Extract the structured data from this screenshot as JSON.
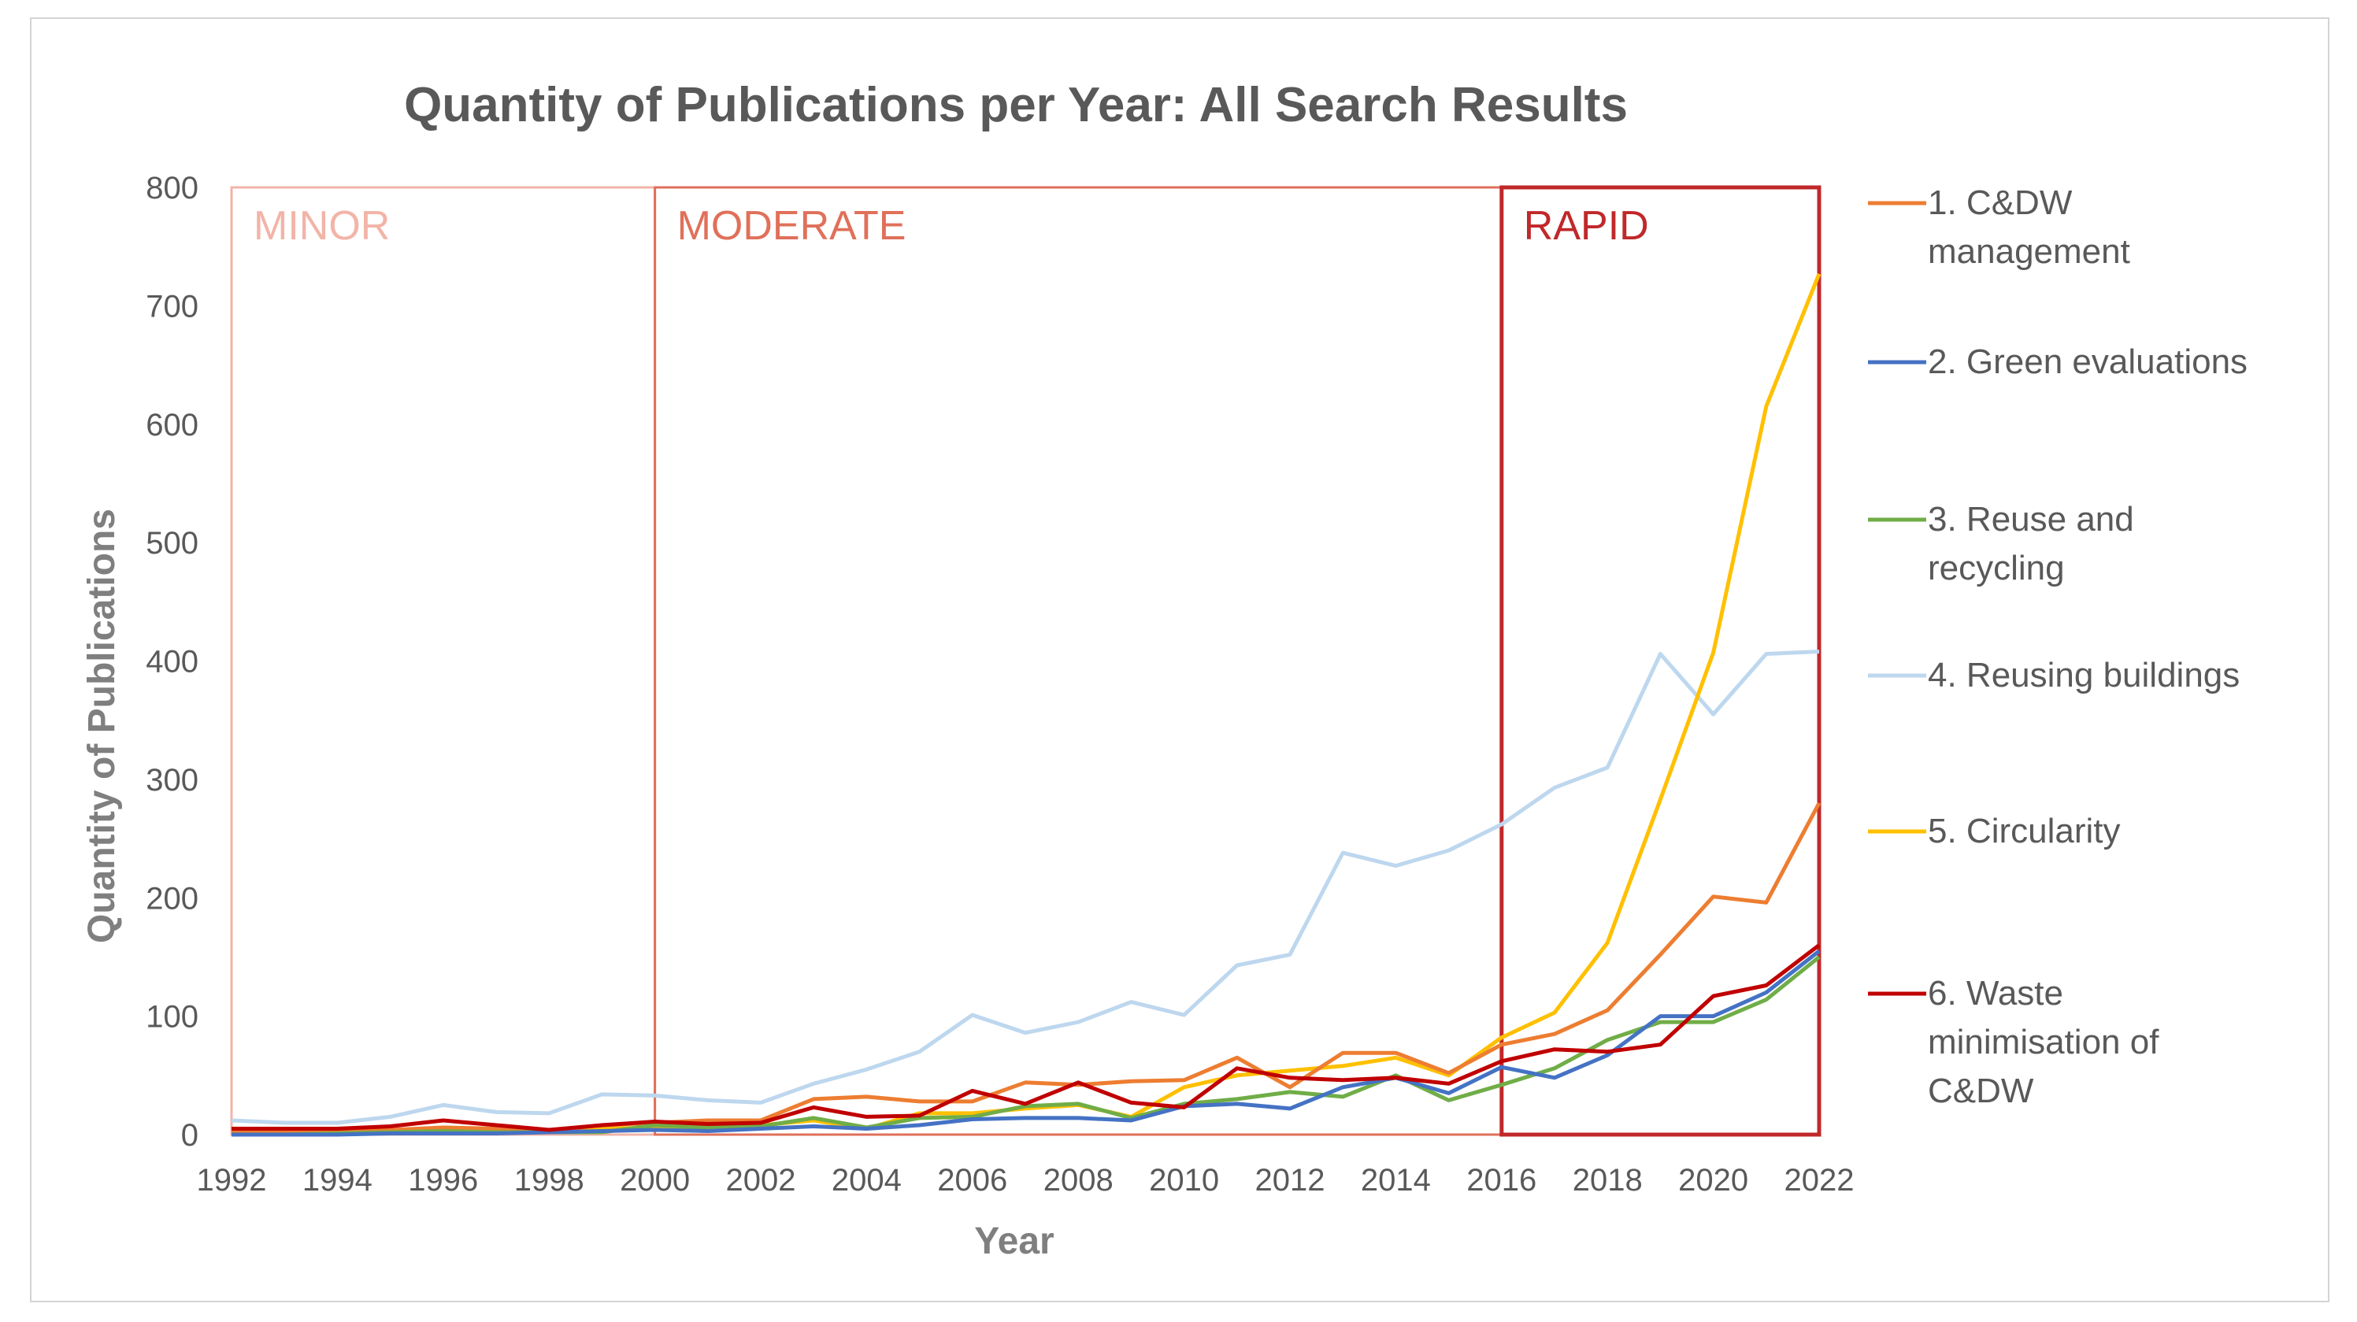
{
  "chart_data": {
    "type": "line",
    "title": "Quantity of Publications per Year: All Search Results",
    "xlabel": "Year",
    "ylabel": "Quantity of Publications",
    "xlim": [
      1992,
      2022
    ],
    "ylim": [
      0,
      800
    ],
    "x_ticks": [
      "1992",
      "1994",
      "1996",
      "1998",
      "2000",
      "2002",
      "2004",
      "2006",
      "2008",
      "2010",
      "2012",
      "2014",
      "2016",
      "2018",
      "2020",
      "2022"
    ],
    "y_ticks": [
      "0",
      "100",
      "200",
      "300",
      "400",
      "500",
      "600",
      "700",
      "800"
    ],
    "grid": false,
    "legend_position": "right",
    "x": [
      1992,
      1993,
      1994,
      1995,
      1996,
      1997,
      1998,
      1999,
      2000,
      2001,
      2002,
      2003,
      2004,
      2005,
      2006,
      2007,
      2008,
      2009,
      2010,
      2011,
      2012,
      2013,
      2014,
      2015,
      2016,
      2017,
      2018,
      2019,
      2020,
      2021,
      2022
    ],
    "phases": [
      {
        "label": "MINOR",
        "start": 1992,
        "end": 2000,
        "color": "#f2b4a8"
      },
      {
        "label": "MODERATE",
        "start": 2000,
        "end": 2016,
        "color": "#e0705a"
      },
      {
        "label": "RAPID",
        "start": 2016,
        "end": 2022,
        "color": "#c0282a"
      }
    ],
    "series": [
      {
        "name": "4. Reusing buildings",
        "legend_lines": [
          "4. Reusing buildings"
        ],
        "color": "#bdd7ee",
        "values": [
          12,
          10,
          10,
          15,
          25,
          19,
          18,
          34,
          33,
          29,
          27,
          43,
          55,
          70,
          101,
          86,
          95,
          112,
          101,
          143,
          152,
          238,
          227,
          240,
          262,
          293,
          310,
          406,
          355,
          406,
          408
        ]
      },
      {
        "name": "5. Circularity",
        "legend_lines": [
          "5. Circularity"
        ],
        "color": "#ffc000",
        "values": [
          1,
          1,
          2,
          2,
          4,
          4,
          3,
          5,
          6,
          6,
          8,
          12,
          5,
          18,
          18,
          22,
          25,
          15,
          40,
          50,
          54,
          58,
          65,
          50,
          82,
          103,
          162,
          283,
          407,
          615,
          727
        ]
      },
      {
        "name": "1. C&DW management",
        "legend_lines": [
          "1. C&DW",
          "management"
        ],
        "color": "#ed7d31",
        "values": [
          2,
          2,
          3,
          4,
          6,
          5,
          3,
          8,
          10,
          12,
          12,
          30,
          32,
          28,
          28,
          44,
          42,
          45,
          46,
          65,
          40,
          69,
          69,
          52,
          76,
          85,
          105,
          152,
          201,
          196,
          280
        ]
      },
      {
        "name": "3. Reuse and recycling",
        "legend_lines": [
          "3. Reuse and",
          "recycling"
        ],
        "color": "#70ad47",
        "values": [
          0,
          0,
          1,
          2,
          3,
          2,
          2,
          2,
          8,
          6,
          7,
          14,
          6,
          14,
          15,
          24,
          26,
          14,
          26,
          30,
          36,
          32,
          50,
          29,
          42,
          56,
          80,
          95,
          95,
          114,
          150
        ]
      },
      {
        "name": "2. Green evaluations",
        "legend_lines": [
          "2. Green evaluations"
        ],
        "color": "#4472c4",
        "values": [
          0,
          0,
          0,
          1,
          1,
          1,
          2,
          3,
          4,
          3,
          5,
          7,
          5,
          8,
          13,
          14,
          14,
          12,
          24,
          26,
          22,
          40,
          48,
          35,
          57,
          48,
          67,
          100,
          100,
          120,
          155
        ]
      },
      {
        "name": "6. Waste minimisation of C&DW",
        "legend_lines": [
          "6. Waste",
          "minimisation of",
          "C&DW"
        ],
        "color": "#c00000",
        "values": [
          5,
          5,
          5,
          7,
          12,
          8,
          4,
          8,
          11,
          9,
          10,
          23,
          15,
          16,
          37,
          26,
          44,
          27,
          23,
          56,
          48,
          46,
          48,
          43,
          62,
          72,
          70,
          76,
          117,
          126,
          160
        ]
      }
    ]
  }
}
